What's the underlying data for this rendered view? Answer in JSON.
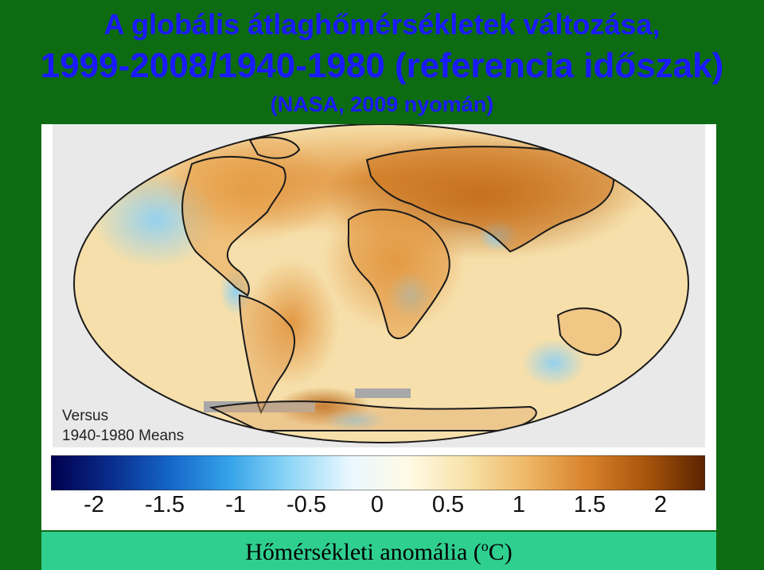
{
  "title": {
    "line1": "A globális átlaghőmérsékletek változása,",
    "line2": "1999-2008/1940-1980 (referencia időszak)",
    "line3": "(NASA, 2009 nyomán)"
  },
  "map": {
    "versus_line1": "Versus",
    "versus_line2": "1940-1980 Means",
    "colors": {
      "ocean_warm": "#f6dfaa",
      "land_warm": "#e8a04a",
      "hot": "#b5600f",
      "cool": "#9fd6f2",
      "no_data": "#a8a8a8",
      "coast": "#1a1a1a"
    }
  },
  "colorbar": {
    "ticks": [
      "-2",
      "-1.5",
      "-1",
      "-0.5",
      "0",
      "0.5",
      "1",
      "1.5",
      "2"
    ],
    "colors": [
      "#00004d",
      "#0a2c8c",
      "#1466c8",
      "#35a4ea",
      "#8ed6f6",
      "#e8f7ff",
      "#fffbe6",
      "#f7e2a8",
      "#eeb867",
      "#d9832c",
      "#a9550c",
      "#5a2300"
    ]
  },
  "footer": {
    "label_main": "Hőmérsékleti anomália (",
    "label_sup": "o",
    "label_end": "C)"
  }
}
